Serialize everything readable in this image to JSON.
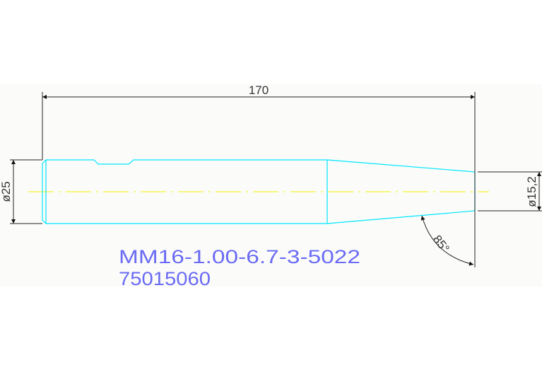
{
  "drawing": {
    "dimensions": {
      "overall_length": "170",
      "large_diameter": "ø25",
      "small_diameter": "ø15,2",
      "taper_angle": "85°"
    },
    "notes": {
      "part_code": "MM16-1.00-6.7-3-5022",
      "part_number": "75015060"
    },
    "colors": {
      "background_band": "#fbfcfa",
      "part_outline": "#00e5ff",
      "centerline": "#f0f000",
      "dimension_lines": "#222222",
      "note_text": "#6b6bf5"
    }
  }
}
